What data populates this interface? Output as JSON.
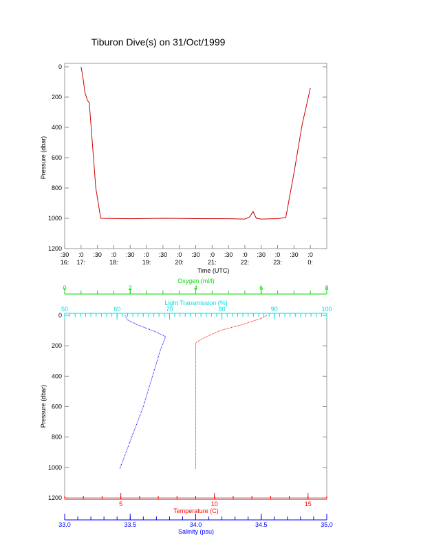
{
  "chart_data": [
    {
      "type": "line",
      "title": "Tiburon Dive(s) on 31/Oct/1999",
      "xlabel": "Time (UTC)",
      "ylabel": "Pressure (dbar)",
      "xlim_hours": [
        16.5,
        24.5
      ],
      "ylim": [
        1200,
        0
      ],
      "x_ticks": [
        {
          "h": 16.5,
          "top": ":30",
          "bottom": "16:"
        },
        {
          "h": 17,
          "top": ":0",
          "bottom": "17:"
        },
        {
          "h": 17.5,
          "top": ":30",
          "bottom": ""
        },
        {
          "h": 18,
          "top": ":0",
          "bottom": "18:"
        },
        {
          "h": 18.5,
          "top": ":30",
          "bottom": ""
        },
        {
          "h": 19,
          "top": ":0",
          "bottom": "19:"
        },
        {
          "h": 19.5,
          "top": ":30",
          "bottom": ""
        },
        {
          "h": 20,
          "top": ":0",
          "bottom": "20:"
        },
        {
          "h": 20.5,
          "top": ":30",
          "bottom": ""
        },
        {
          "h": 21,
          "top": ":0",
          "bottom": "21:"
        },
        {
          "h": 21.5,
          "top": ":30",
          "bottom": ""
        },
        {
          "h": 22,
          "top": ":0",
          "bottom": "22:"
        },
        {
          "h": 22.5,
          "top": ":30",
          "bottom": ""
        },
        {
          "h": 23,
          "top": ":0",
          "bottom": "23:"
        },
        {
          "h": 23.5,
          "top": ":30",
          "bottom": ""
        },
        {
          "h": 24,
          "top": ":0",
          "bottom": "0:"
        }
      ],
      "y_ticks": [
        0,
        200,
        400,
        600,
        800,
        1000,
        1200
      ],
      "series": [
        {
          "color": "#cc0000",
          "x": [
            17.0,
            17.05,
            17.12,
            17.2,
            17.25,
            17.45,
            17.6,
            18.5,
            19.5,
            20.5,
            21.5,
            22.0,
            22.15,
            22.25,
            22.35,
            22.5,
            23.0,
            23.25,
            23.5,
            23.75,
            24.0
          ],
          "y": [
            0,
            60,
            170,
            225,
            235,
            800,
            1000,
            1003,
            1000,
            1002,
            1003,
            1005,
            990,
            955,
            1000,
            1005,
            1002,
            995,
            700,
            380,
            140
          ]
        }
      ]
    },
    {
      "type": "line",
      "ylabel": "Pressure (dbar)",
      "ylim": [
        1200,
        0
      ],
      "y_ticks": [
        0,
        200,
        400,
        600,
        800,
        1000,
        1200
      ],
      "axes": {
        "oxygen": {
          "label": "Oxygen (ml/l)",
          "range": [
            0,
            8
          ],
          "ticks": [
            0,
            2,
            4,
            6,
            8
          ],
          "color": "#00dd00"
        },
        "light_transmission": {
          "label": "Light Transmission (%)",
          "range": [
            50,
            100
          ],
          "ticks": [
            50,
            60,
            70,
            80,
            90,
            100
          ],
          "color": "#00dddd"
        },
        "temperature": {
          "label": "Temperature (C)",
          "range": [
            2,
            16
          ],
          "ticks": [
            5,
            10,
            15
          ],
          "color": "#ff0000"
        },
        "salinity": {
          "label": "Salinity (psu)",
          "range": [
            33.0,
            35.0
          ],
          "ticks": [
            "33.0",
            "33.5",
            "34.0",
            "34.5",
            "35.0"
          ],
          "color": "#0000ff"
        }
      },
      "series": [
        {
          "name": "Salinity (psu)",
          "axis": "salinity",
          "color": "#0000ff",
          "x": [
            33.46,
            33.48,
            33.55,
            33.7,
            33.77,
            33.73,
            33.6,
            33.42
          ],
          "y": [
            0,
            30,
            60,
            110,
            140,
            230,
            600,
            1010
          ]
        },
        {
          "name": "Temperature (C)",
          "axis": "temperature",
          "color": "#ff0000",
          "x": [
            12.8,
            12.5,
            11.5,
            10.3,
            9.4,
            9.0,
            9.0,
            9.0
          ],
          "y": [
            0,
            20,
            60,
            100,
            150,
            180,
            600,
            1010
          ]
        }
      ]
    }
  ]
}
